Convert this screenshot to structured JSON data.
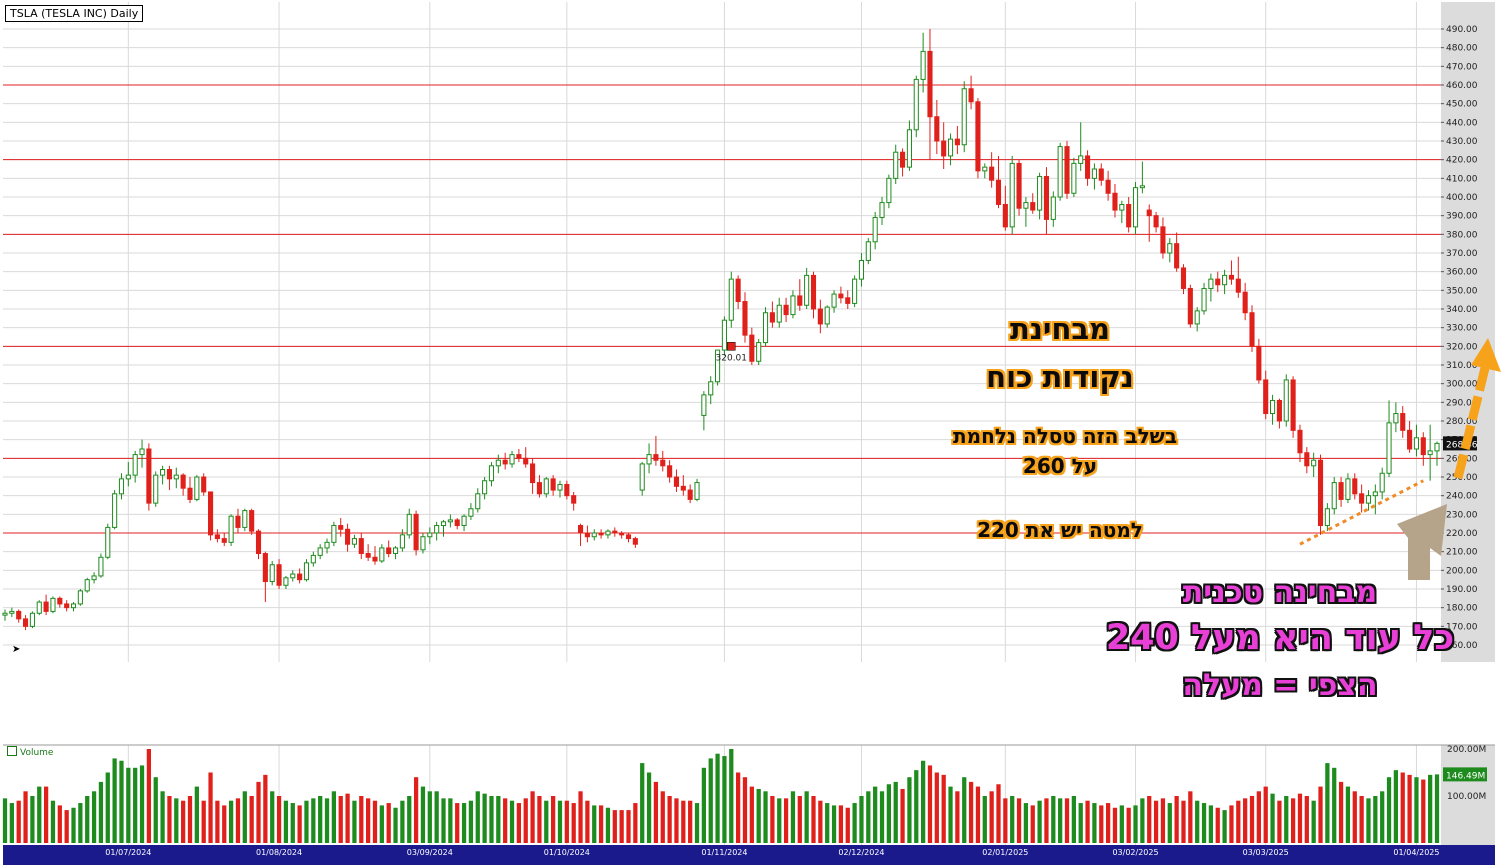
{
  "chart_title": "TSLA (TESLA INC) Daily",
  "volume_label": "Volume",
  "last_price_label": "268.46",
  "last_volume_label": "146.49M",
  "marker_label": "320.01",
  "annotations": {
    "strength_title_1": "מבחינת",
    "strength_title_2": "נקודות כוח",
    "fight_line_1": "בשלב הזה טסלה נלחמת",
    "fight_line_2": "על 260",
    "below_line": "למטה יש את 220",
    "tech_line_1": "מבחינה טכנית",
    "tech_line_2": "כל עוד היא מעל 240",
    "tech_line_3": "הצפי = מעלה"
  },
  "colors": {
    "up": "#1e8b1e",
    "down": "#e0201b",
    "level_line": "#e02020",
    "grid": "#d9d9d9",
    "date_bar": "#1a1a8c",
    "arrow_up": "#f7a21b",
    "arrow_grey": "#b5a48a",
    "trend_line": "#f08a24",
    "pink": "#e83fd6"
  },
  "chart_data": {
    "type": "candlestick",
    "price_axis": {
      "min": 160,
      "max": 490,
      "step": 10,
      "ticks": [
        "490.00",
        "480.00",
        "470.00",
        "460.00",
        "450.00",
        "440.00",
        "430.00",
        "420.00",
        "410.00",
        "400.00",
        "390.00",
        "380.00",
        "370.00",
        "360.00",
        "350.00",
        "340.00",
        "330.00",
        "320.00",
        "310.00",
        "300.00",
        "290.00",
        "280.00",
        "270.00",
        "260.00",
        "250.00",
        "240.00",
        "230.00",
        "220.00",
        "210.00",
        "200.00",
        "190.00",
        "180.00",
        "170.00",
        "160.00"
      ]
    },
    "volume_axis": {
      "ticks": [
        "200.00M",
        "100.00M"
      ],
      "values": [
        200,
        100
      ]
    },
    "date_labels": [
      "01/07/2024",
      "01/08/2024",
      "03/09/2024",
      "01/10/2024",
      "01/11/2024",
      "02/12/2024",
      "02/01/2025",
      "03/02/2025",
      "03/03/2025",
      "01/04/2025"
    ],
    "date_label_index": [
      18,
      40,
      62,
      82,
      105,
      125,
      146,
      165,
      184,
      206
    ],
    "horizontal_levels": [
      460,
      420,
      380,
      320,
      260,
      220
    ],
    "marker": {
      "index": 106,
      "value": 320.01
    },
    "trend_line": {
      "from": [
        189,
        214
      ],
      "to": [
        207,
        248
      ]
    },
    "candles": [
      [
        176,
        179,
        173,
        177,
        95
      ],
      [
        177,
        180,
        175,
        178,
        85
      ],
      [
        178,
        179,
        172,
        174,
        90
      ],
      [
        174,
        176,
        168,
        170,
        110
      ],
      [
        170,
        178,
        169,
        177,
        100
      ],
      [
        177,
        184,
        176,
        183,
        120
      ],
      [
        183,
        187,
        176,
        178,
        120
      ],
      [
        178,
        186,
        177,
        185,
        90
      ],
      [
        185,
        186,
        180,
        182,
        80
      ],
      [
        182,
        184,
        178,
        180,
        70
      ],
      [
        180,
        183,
        178,
        182,
        75
      ],
      [
        182,
        190,
        181,
        189,
        85
      ],
      [
        189,
        196,
        188,
        195,
        100
      ],
      [
        195,
        199,
        193,
        197,
        110
      ],
      [
        197,
        209,
        196,
        207,
        130
      ],
      [
        207,
        225,
        206,
        223,
        150
      ],
      [
        223,
        243,
        222,
        241,
        180
      ],
      [
        241,
        252,
        238,
        249,
        175
      ],
      [
        249,
        258,
        245,
        251,
        160
      ],
      [
        251,
        264,
        247,
        262,
        160
      ],
      [
        262,
        270,
        255,
        265,
        165
      ],
      [
        265,
        268,
        232,
        236,
        200
      ],
      [
        236,
        253,
        234,
        251,
        140
      ],
      [
        251,
        256,
        246,
        254,
        110
      ],
      [
        254,
        256,
        243,
        249,
        100
      ],
      [
        249,
        255,
        244,
        251,
        95
      ],
      [
        251,
        252,
        240,
        244,
        90
      ],
      [
        244,
        250,
        236,
        238,
        100
      ],
      [
        238,
        251,
        237,
        250,
        120
      ],
      [
        250,
        252,
        240,
        242,
        90
      ],
      [
        242,
        242,
        216,
        219,
        150
      ],
      [
        219,
        222,
        215,
        217,
        90
      ],
      [
        217,
        220,
        213,
        215,
        80
      ],
      [
        215,
        230,
        213,
        229,
        90
      ],
      [
        229,
        233,
        220,
        223,
        95
      ],
      [
        223,
        233,
        221,
        232,
        110
      ],
      [
        232,
        233,
        219,
        221,
        100
      ],
      [
        221,
        222,
        206,
        209,
        130
      ],
      [
        209,
        210,
        183,
        194,
        145
      ],
      [
        194,
        205,
        192,
        203,
        110
      ],
      [
        203,
        206,
        190,
        192,
        100
      ],
      [
        192,
        197,
        190,
        196,
        90
      ],
      [
        196,
        200,
        194,
        198,
        85
      ],
      [
        198,
        201,
        193,
        195,
        80
      ],
      [
        195,
        206,
        194,
        204,
        90
      ],
      [
        204,
        210,
        202,
        208,
        95
      ],
      [
        208,
        214,
        206,
        212,
        100
      ],
      [
        212,
        217,
        209,
        215,
        95
      ],
      [
        215,
        226,
        213,
        224,
        110
      ],
      [
        224,
        228,
        218,
        222,
        100
      ],
      [
        222,
        225,
        210,
        214,
        105
      ],
      [
        214,
        219,
        212,
        217,
        90
      ],
      [
        217,
        220,
        206,
        209,
        100
      ],
      [
        209,
        214,
        205,
        207,
        95
      ],
      [
        207,
        213,
        203,
        205,
        90
      ],
      [
        205,
        214,
        204,
        212,
        80
      ],
      [
        212,
        216,
        207,
        209,
        85
      ],
      [
        209,
        213,
        206,
        212,
        75
      ],
      [
        212,
        222,
        210,
        219,
        90
      ],
      [
        219,
        233,
        217,
        230,
        100
      ],
      [
        230,
        232,
        208,
        211,
        140
      ],
      [
        211,
        220,
        209,
        218,
        120
      ],
      [
        218,
        223,
        214,
        220,
        110
      ],
      [
        220,
        226,
        216,
        224,
        110
      ],
      [
        224,
        227,
        218,
        226,
        95
      ],
      [
        226,
        230,
        223,
        227,
        95
      ],
      [
        227,
        228,
        222,
        224,
        85
      ],
      [
        224,
        230,
        221,
        229,
        85
      ],
      [
        229,
        236,
        227,
        233,
        90
      ],
      [
        233,
        244,
        231,
        241,
        110
      ],
      [
        241,
        250,
        238,
        248,
        105
      ],
      [
        248,
        258,
        245,
        256,
        100
      ],
      [
        256,
        262,
        252,
        259,
        100
      ],
      [
        259,
        263,
        254,
        257,
        95
      ],
      [
        257,
        264,
        255,
        262,
        90
      ],
      [
        262,
        265,
        258,
        260,
        85
      ],
      [
        260,
        266,
        255,
        257,
        95
      ],
      [
        257,
        260,
        241,
        247,
        110
      ],
      [
        247,
        251,
        239,
        241,
        100
      ],
      [
        241,
        250,
        239,
        249,
        90
      ],
      [
        249,
        251,
        240,
        243,
        100
      ],
      [
        243,
        248,
        239,
        246,
        90
      ],
      [
        246,
        248,
        238,
        240,
        90
      ],
      [
        240,
        242,
        232,
        236,
        85
      ],
      [
        224,
        225,
        213,
        220,
        110
      ],
      [
        220,
        224,
        215,
        218,
        90
      ],
      [
        218,
        222,
        216,
        220,
        80
      ],
      [
        220,
        222,
        217,
        219,
        80
      ],
      [
        219,
        222,
        217,
        221,
        75
      ],
      [
        221,
        223,
        218,
        220,
        70
      ],
      [
        220,
        221,
        217,
        219,
        70
      ],
      [
        219,
        220,
        215,
        217,
        70
      ],
      [
        217,
        218,
        212,
        214,
        85
      ],
      [
        243,
        258,
        240,
        257,
        170
      ],
      [
        257,
        268,
        252,
        262,
        150
      ],
      [
        262,
        272,
        256,
        259,
        130
      ],
      [
        259,
        264,
        253,
        256,
        110
      ],
      [
        256,
        259,
        247,
        250,
        100
      ],
      [
        250,
        254,
        242,
        245,
        95
      ],
      [
        245,
        251,
        240,
        243,
        90
      ],
      [
        243,
        246,
        236,
        238,
        90
      ],
      [
        238,
        249,
        237,
        247,
        85
      ],
      [
        283,
        296,
        275,
        294,
        160
      ],
      [
        294,
        304,
        289,
        301,
        180
      ],
      [
        301,
        318,
        299,
        318,
        190
      ],
      [
        318,
        336,
        315,
        334,
        185
      ],
      [
        334,
        360,
        330,
        356,
        200
      ],
      [
        356,
        358,
        340,
        344,
        150
      ],
      [
        344,
        349,
        322,
        326,
        140
      ],
      [
        326,
        330,
        310,
        312,
        120
      ],
      [
        312,
        324,
        310,
        322,
        115
      ],
      [
        322,
        341,
        320,
        338,
        110
      ],
      [
        338,
        344,
        330,
        333,
        100
      ],
      [
        333,
        346,
        330,
        342,
        95
      ],
      [
        342,
        346,
        333,
        337,
        95
      ],
      [
        337,
        350,
        335,
        347,
        110
      ],
      [
        347,
        356,
        339,
        342,
        100
      ],
      [
        342,
        362,
        340,
        358,
        110
      ],
      [
        358,
        360,
        335,
        340,
        100
      ],
      [
        340,
        345,
        327,
        332,
        90
      ],
      [
        332,
        342,
        330,
        341,
        85
      ],
      [
        341,
        350,
        338,
        348,
        80
      ],
      [
        348,
        352,
        343,
        346,
        80
      ],
      [
        346,
        350,
        340,
        343,
        75
      ],
      [
        343,
        358,
        341,
        356,
        85
      ],
      [
        356,
        370,
        352,
        366,
        100
      ],
      [
        366,
        378,
        364,
        376,
        110
      ],
      [
        376,
        392,
        372,
        389,
        120
      ],
      [
        389,
        400,
        385,
        397,
        110
      ],
      [
        397,
        412,
        394,
        410,
        125
      ],
      [
        410,
        428,
        407,
        424,
        130
      ],
      [
        424,
        426,
        411,
        416,
        115
      ],
      [
        416,
        441,
        414,
        436,
        140
      ],
      [
        436,
        465,
        432,
        463,
        155
      ],
      [
        463,
        488,
        456,
        478,
        175
      ],
      [
        478,
        490,
        420,
        443,
        165
      ],
      [
        443,
        452,
        423,
        430,
        150
      ],
      [
        430,
        440,
        415,
        422,
        145
      ],
      [
        422,
        434,
        417,
        431,
        120
      ],
      [
        431,
        438,
        423,
        428,
        110
      ],
      [
        428,
        462,
        424,
        458,
        140
      ],
      [
        458,
        465,
        447,
        451,
        130
      ],
      [
        451,
        453,
        410,
        414,
        120
      ],
      [
        414,
        418,
        410,
        416,
        100
      ],
      [
        416,
        424,
        405,
        409,
        110
      ],
      [
        409,
        422,
        394,
        396,
        125
      ],
      [
        396,
        406,
        382,
        384,
        95
      ],
      [
        384,
        422,
        380,
        418,
        100
      ],
      [
        418,
        420,
        390,
        394,
        95
      ],
      [
        394,
        400,
        384,
        397,
        85
      ],
      [
        397,
        402,
        391,
        393,
        80
      ],
      [
        393,
        413,
        388,
        411,
        90
      ],
      [
        411,
        416,
        380,
        388,
        95
      ],
      [
        388,
        403,
        384,
        400,
        100
      ],
      [
        400,
        429,
        398,
        427,
        95
      ],
      [
        427,
        430,
        399,
        402,
        95
      ],
      [
        402,
        421,
        400,
        418,
        100
      ],
      [
        418,
        440,
        414,
        422,
        85
      ],
      [
        422,
        425,
        406,
        410,
        90
      ],
      [
        410,
        418,
        404,
        415,
        85
      ],
      [
        415,
        418,
        406,
        409,
        80
      ],
      [
        409,
        414,
        398,
        402,
        85
      ],
      [
        402,
        407,
        389,
        393,
        75
      ],
      [
        393,
        398,
        386,
        396,
        80
      ],
      [
        396,
        400,
        381,
        384,
        75
      ],
      [
        384,
        408,
        380,
        405,
        80
      ],
      [
        405,
        419,
        402,
        406,
        95
      ],
      [
        393,
        396,
        376,
        390,
        100
      ],
      [
        390,
        392,
        381,
        384,
        90
      ],
      [
        384,
        389,
        367,
        370,
        95
      ],
      [
        370,
        378,
        365,
        375,
        85
      ],
      [
        375,
        381,
        360,
        362,
        100
      ],
      [
        362,
        364,
        348,
        351,
        90
      ],
      [
        351,
        353,
        330,
        332,
        110
      ],
      [
        332,
        341,
        328,
        339,
        90
      ],
      [
        339,
        354,
        337,
        351,
        85
      ],
      [
        351,
        359,
        344,
        356,
        80
      ],
      [
        356,
        360,
        349,
        353,
        75
      ],
      [
        353,
        361,
        348,
        358,
        70
      ],
      [
        358,
        366,
        353,
        356,
        80
      ],
      [
        356,
        368,
        346,
        349,
        90
      ],
      [
        349,
        354,
        334,
        338,
        95
      ],
      [
        338,
        342,
        317,
        320,
        100
      ],
      [
        320,
        324,
        300,
        302,
        110
      ],
      [
        302,
        307,
        281,
        284,
        120
      ],
      [
        284,
        294,
        278,
        291,
        105
      ],
      [
        291,
        292,
        276,
        280,
        90
      ],
      [
        280,
        305,
        277,
        302,
        100
      ],
      [
        302,
        304,
        271,
        275,
        95
      ],
      [
        275,
        278,
        258,
        263,
        105
      ],
      [
        263,
        266,
        252,
        256,
        100
      ],
      [
        256,
        263,
        250,
        259,
        90
      ],
      [
        259,
        262,
        219,
        224,
        120
      ],
      [
        224,
        236,
        221,
        233,
        170
      ],
      [
        233,
        250,
        230,
        247,
        160
      ],
      [
        247,
        250,
        234,
        238,
        130
      ],
      [
        238,
        252,
        236,
        249,
        120
      ],
      [
        249,
        252,
        238,
        241,
        110
      ],
      [
        241,
        246,
        231,
        236,
        100
      ],
      [
        236,
        243,
        232,
        240,
        95
      ],
      [
        240,
        246,
        230,
        242,
        100
      ],
      [
        242,
        255,
        238,
        252,
        110
      ],
      [
        252,
        291,
        250,
        279,
        140
      ],
      [
        279,
        290,
        274,
        284,
        155
      ],
      [
        284,
        288,
        271,
        275,
        150
      ],
      [
        275,
        280,
        263,
        265,
        145
      ],
      [
        265,
        278,
        261,
        271,
        140
      ],
      [
        271,
        274,
        256,
        262,
        135
      ],
      [
        262,
        278,
        248,
        264,
        145
      ],
      [
        264,
        269,
        256,
        268,
        146
      ]
    ]
  }
}
